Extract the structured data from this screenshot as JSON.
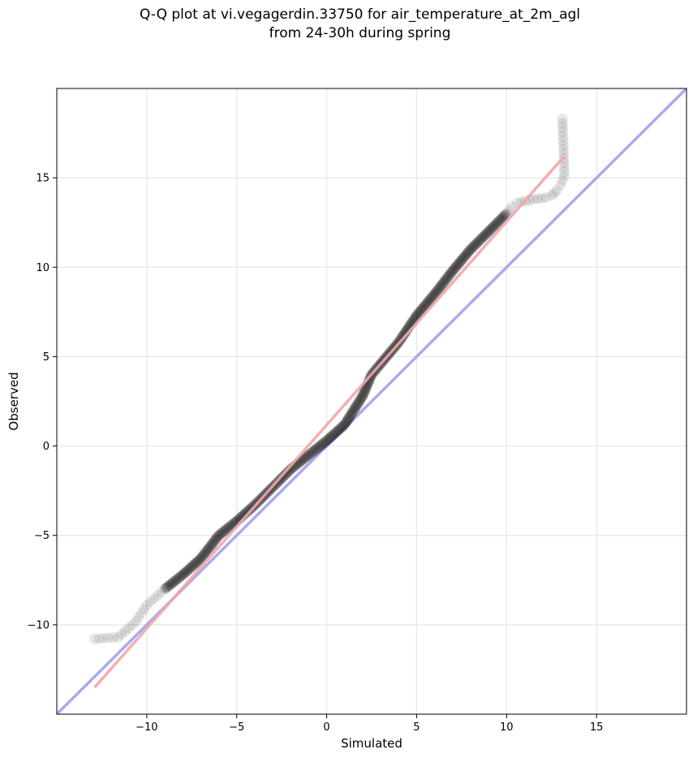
{
  "chart_data": {
    "type": "scatter",
    "title_lines": [
      "Q-Q plot at vi.vegagerdin.33750 for air_temperature_at_2m_agl",
      "from 24-30h during spring"
    ],
    "xlabel": "Simulated",
    "ylabel": "Observed",
    "xlim": [
      -15,
      20
    ],
    "ylim": [
      -15,
      20
    ],
    "xticks": [
      -10,
      -5,
      0,
      5,
      10,
      15
    ],
    "yticks": [
      -10,
      -5,
      0,
      5,
      10,
      15
    ],
    "tick_labels": [
      "−10",
      "−5",
      "0",
      "5",
      "10",
      "15"
    ],
    "grid": true,
    "reference_line": {
      "from": [
        -15,
        -15
      ],
      "to": [
        20,
        20
      ],
      "color": "#aaaaf2"
    },
    "fit_line": {
      "from": [
        -12.9,
        -13.5
      ],
      "to": [
        13.2,
        16.2
      ],
      "color": "#f4a5a5"
    },
    "points": {
      "color": "#000000",
      "quantile_curve_xy": [
        [
          -12.9,
          -10.8
        ],
        [
          -12.4,
          -10.75
        ],
        [
          -11.6,
          -10.7
        ],
        [
          -11.0,
          -10.2
        ],
        [
          -10.6,
          -9.8
        ],
        [
          -10.0,
          -8.9
        ],
        [
          -9.0,
          -8.0
        ],
        [
          -8.0,
          -7.2
        ],
        [
          -7.0,
          -6.3
        ],
        [
          -6.0,
          -5.0
        ],
        [
          -5.0,
          -4.2
        ],
        [
          -4.0,
          -3.3
        ],
        [
          -3.0,
          -2.3
        ],
        [
          -2.0,
          -1.3
        ],
        [
          -1.0,
          -0.5
        ],
        [
          0.0,
          0.3
        ],
        [
          1.0,
          1.2
        ],
        [
          2.0,
          2.8
        ],
        [
          2.5,
          4.0
        ],
        [
          3.0,
          4.6
        ],
        [
          4.0,
          5.8
        ],
        [
          5.0,
          7.3
        ],
        [
          6.0,
          8.5
        ],
        [
          7.0,
          9.8
        ],
        [
          8.0,
          11.0
        ],
        [
          9.0,
          12.0
        ],
        [
          10.0,
          13.0
        ],
        [
          10.3,
          13.4
        ],
        [
          10.6,
          13.6
        ],
        [
          11.5,
          13.8
        ],
        [
          12.2,
          13.9
        ],
        [
          12.5,
          14.0
        ],
        [
          12.8,
          14.3
        ],
        [
          13.0,
          14.6
        ],
        [
          13.2,
          15.1
        ],
        [
          13.2,
          15.6
        ],
        [
          13.1,
          18.3
        ]
      ]
    }
  }
}
